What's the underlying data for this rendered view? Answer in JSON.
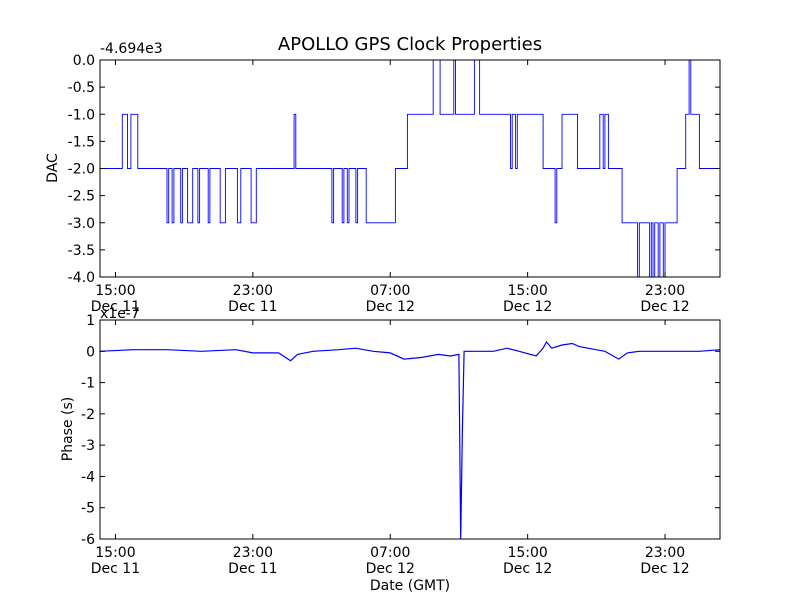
{
  "figure_title": "APOLLO GPS Clock Properties",
  "chart_data": [
    {
      "type": "line",
      "ylabel": "DAC",
      "offset_label": "-4.694e3",
      "ylim": [
        -4.0,
        0.0
      ],
      "y_ticks": [
        "0.0",
        "-0.5",
        "-1.0",
        "-1.5",
        "-2.0",
        "-2.5",
        "-3.0",
        "-3.5",
        "-4.0"
      ],
      "x_ticks": [
        {
          "time": "15:00",
          "date": "Dec 11"
        },
        {
          "time": "23:00",
          "date": "Dec 11"
        },
        {
          "time": "07:00",
          "date": "Dec 12"
        },
        {
          "time": "15:00",
          "date": "Dec 12"
        },
        {
          "time": "23:00",
          "date": "Dec 12"
        }
      ],
      "xlim_hours": [
        -2.9,
        33.2
      ],
      "color": "#0000ff",
      "series": [
        {
          "points": [
            [
              -2.9,
              -2
            ],
            [
              -1.6,
              -2
            ],
            [
              -1.6,
              -1
            ],
            [
              -1.3,
              -1
            ],
            [
              -1.3,
              -2
            ],
            [
              -1.1,
              -2
            ],
            [
              -1.1,
              -1
            ],
            [
              -0.7,
              -1
            ],
            [
              -0.7,
              -2
            ],
            [
              1.0,
              -2
            ],
            [
              1.0,
              -3
            ],
            [
              1.1,
              -3
            ],
            [
              1.1,
              -2
            ],
            [
              1.3,
              -2
            ],
            [
              1.3,
              -3
            ],
            [
              1.4,
              -3
            ],
            [
              1.4,
              -2
            ],
            [
              1.8,
              -2
            ],
            [
              1.8,
              -3
            ],
            [
              1.9,
              -3
            ],
            [
              1.9,
              -2
            ],
            [
              2.2,
              -2
            ],
            [
              2.2,
              -3
            ],
            [
              2.5,
              -3
            ],
            [
              2.5,
              -2
            ],
            [
              2.8,
              -2
            ],
            [
              2.8,
              -3
            ],
            [
              2.9,
              -3
            ],
            [
              2.9,
              -2
            ],
            [
              3.4,
              -2
            ],
            [
              3.4,
              -3
            ],
            [
              3.5,
              -3
            ],
            [
              3.5,
              -2
            ],
            [
              4.1,
              -2
            ],
            [
              4.1,
              -3
            ],
            [
              4.4,
              -3
            ],
            [
              4.4,
              -2
            ],
            [
              5.1,
              -2
            ],
            [
              5.1,
              -3
            ],
            [
              5.3,
              -3
            ],
            [
              5.3,
              -2
            ],
            [
              5.9,
              -2
            ],
            [
              5.9,
              -3
            ],
            [
              6.2,
              -3
            ],
            [
              6.2,
              -2
            ],
            [
              8.4,
              -2
            ],
            [
              8.4,
              -1
            ],
            [
              8.5,
              -1
            ],
            [
              8.5,
              -2
            ],
            [
              10.6,
              -2
            ],
            [
              10.6,
              -3
            ],
            [
              10.7,
              -3
            ],
            [
              10.7,
              -2
            ],
            [
              11.2,
              -2
            ],
            [
              11.2,
              -3
            ],
            [
              11.3,
              -3
            ],
            [
              11.3,
              -2
            ],
            [
              11.5,
              -2
            ],
            [
              11.5,
              -3
            ],
            [
              11.6,
              -3
            ],
            [
              11.6,
              -2
            ],
            [
              12.0,
              -2
            ],
            [
              12.0,
              -3
            ],
            [
              12.1,
              -3
            ],
            [
              12.1,
              -2
            ],
            [
              12.6,
              -2
            ],
            [
              12.6,
              -3
            ],
            [
              14.3,
              -3
            ],
            [
              14.3,
              -2
            ],
            [
              15.0,
              -2
            ],
            [
              15.0,
              -1
            ],
            [
              16.5,
              -1
            ],
            [
              16.5,
              0
            ],
            [
              16.9,
              0
            ],
            [
              16.9,
              -1
            ],
            [
              17.7,
              -1
            ],
            [
              17.7,
              0
            ],
            [
              17.8,
              0
            ],
            [
              17.8,
              -1
            ],
            [
              18.9,
              -1
            ],
            [
              18.9,
              0
            ],
            [
              19.2,
              0
            ],
            [
              19.2,
              -1
            ],
            [
              21.0,
              -1
            ],
            [
              21.0,
              -2
            ],
            [
              21.1,
              -2
            ],
            [
              21.1,
              -1
            ],
            [
              21.3,
              -1
            ],
            [
              21.3,
              -2
            ],
            [
              21.4,
              -2
            ],
            [
              21.4,
              -1
            ],
            [
              22.9,
              -1
            ],
            [
              22.9,
              -2
            ],
            [
              23.6,
              -2
            ],
            [
              23.6,
              -3
            ],
            [
              23.7,
              -3
            ],
            [
              23.7,
              -2
            ],
            [
              24.0,
              -2
            ],
            [
              24.0,
              -1
            ],
            [
              24.9,
              -1
            ],
            [
              24.9,
              -2
            ],
            [
              26.2,
              -2
            ],
            [
              26.2,
              -1
            ],
            [
              26.4,
              -1
            ],
            [
              26.4,
              -2
            ],
            [
              26.5,
              -2
            ],
            [
              26.5,
              -1
            ],
            [
              26.7,
              -1
            ],
            [
              26.7,
              -2
            ],
            [
              27.5,
              -2
            ],
            [
              27.5,
              -3
            ],
            [
              28.4,
              -3
            ],
            [
              28.4,
              -4
            ],
            [
              28.5,
              -4
            ],
            [
              28.5,
              -3
            ],
            [
              29.1,
              -3
            ],
            [
              29.1,
              -4
            ],
            [
              29.2,
              -4
            ],
            [
              29.2,
              -3
            ],
            [
              29.3,
              -3
            ],
            [
              29.3,
              -4
            ],
            [
              29.4,
              -4
            ],
            [
              29.4,
              -3
            ],
            [
              29.6,
              -3
            ],
            [
              29.6,
              -4
            ],
            [
              29.7,
              -4
            ],
            [
              29.7,
              -3
            ],
            [
              29.9,
              -3
            ],
            [
              29.9,
              -4
            ],
            [
              30.0,
              -4
            ],
            [
              30.0,
              -3
            ],
            [
              30.7,
              -3
            ],
            [
              30.7,
              -2
            ],
            [
              31.2,
              -2
            ],
            [
              31.2,
              -1
            ],
            [
              31.4,
              -1
            ],
            [
              31.4,
              0
            ],
            [
              31.5,
              0
            ],
            [
              31.5,
              -1
            ],
            [
              32.0,
              -1
            ],
            [
              32.0,
              -2
            ],
            [
              33.2,
              -2
            ]
          ]
        }
      ]
    },
    {
      "type": "line",
      "ylabel": "Phase (s)",
      "xlabel": "Date (GMT)",
      "offset_label": "x1e-7",
      "ylim": [
        -6,
        1
      ],
      "y_ticks": [
        "1",
        "0",
        "-1",
        "-2",
        "-3",
        "-4",
        "-5",
        "-6"
      ],
      "x_ticks": [
        {
          "time": "15:00",
          "date": "Dec 11"
        },
        {
          "time": "23:00",
          "date": "Dec 11"
        },
        {
          "time": "07:00",
          "date": "Dec 12"
        },
        {
          "time": "15:00",
          "date": "Dec 12"
        },
        {
          "time": "23:00",
          "date": "Dec 12"
        }
      ],
      "xlim_hours": [
        -2.9,
        33.2
      ],
      "color": "#0000ff",
      "series": [
        {
          "points": [
            [
              -2.9,
              0.0
            ],
            [
              -1.0,
              0.05
            ],
            [
              1.0,
              0.05
            ],
            [
              3.0,
              0.0
            ],
            [
              5.0,
              0.05
            ],
            [
              6.0,
              -0.05
            ],
            [
              7.5,
              -0.05
            ],
            [
              8.2,
              -0.3
            ],
            [
              8.6,
              -0.1
            ],
            [
              9.5,
              0.0
            ],
            [
              11.0,
              0.05
            ],
            [
              12.0,
              0.1
            ],
            [
              13.0,
              0.0
            ],
            [
              14.0,
              -0.05
            ],
            [
              14.8,
              -0.25
            ],
            [
              15.8,
              -0.2
            ],
            [
              16.8,
              -0.1
            ],
            [
              17.5,
              -0.15
            ],
            [
              18.0,
              -0.1
            ],
            [
              18.1,
              -6.0
            ],
            [
              18.2,
              -2.5
            ],
            [
              18.3,
              0.0
            ],
            [
              19.0,
              0.0
            ],
            [
              20.0,
              0.0
            ],
            [
              20.8,
              0.1
            ],
            [
              21.5,
              0.0
            ],
            [
              22.5,
              -0.15
            ],
            [
              22.9,
              0.1
            ],
            [
              23.1,
              0.3
            ],
            [
              23.4,
              0.1
            ],
            [
              24.0,
              0.2
            ],
            [
              24.6,
              0.25
            ],
            [
              25.0,
              0.15
            ],
            [
              26.5,
              0.0
            ],
            [
              27.3,
              -0.25
            ],
            [
              27.8,
              -0.05
            ],
            [
              28.5,
              0.0
            ],
            [
              30.0,
              0.0
            ],
            [
              31.0,
              0.0
            ],
            [
              32.0,
              0.0
            ],
            [
              33.2,
              0.05
            ]
          ]
        }
      ]
    }
  ]
}
